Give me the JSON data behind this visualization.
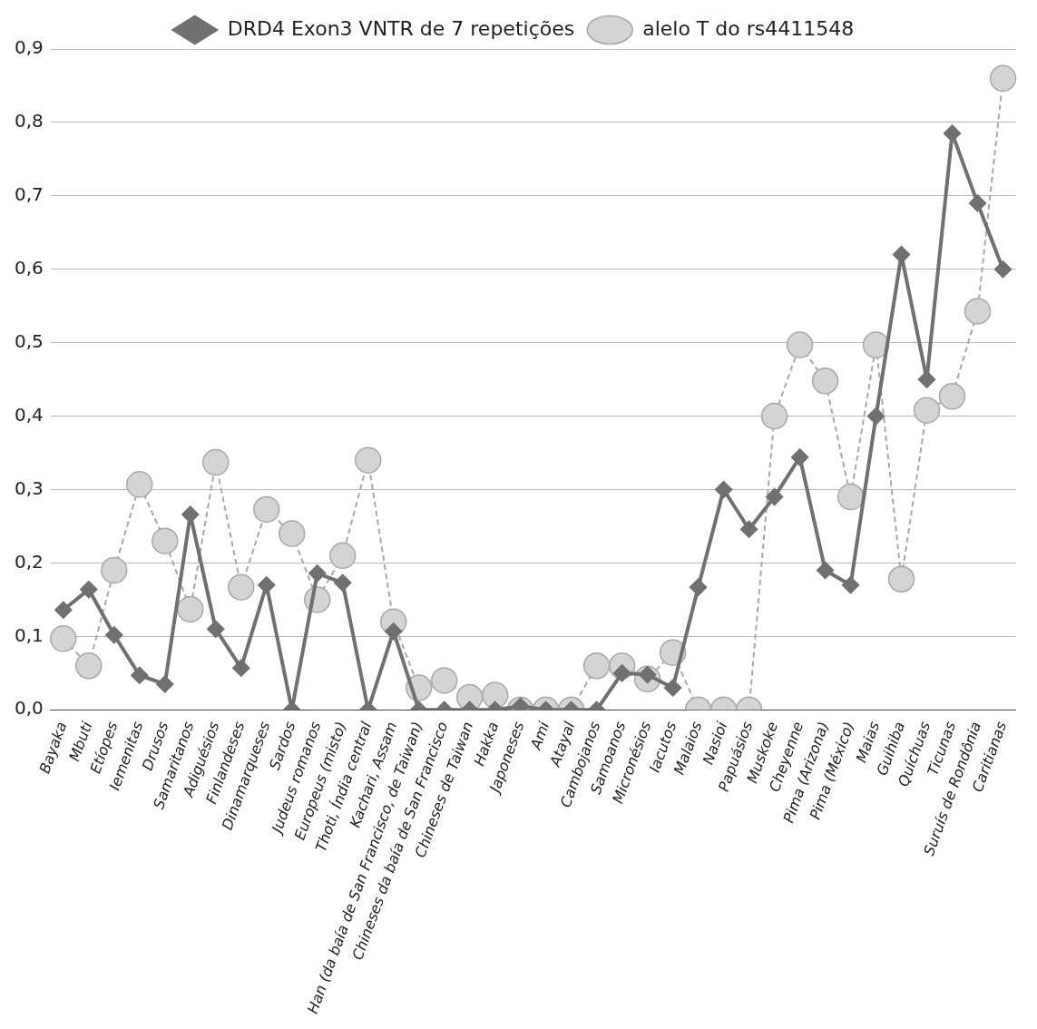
{
  "chart_data": {
    "type": "line",
    "categories": [
      "Bayaka",
      "Mbuti",
      "Etíopes",
      "Iemenitas",
      "Drusos",
      "Samaritanos",
      "Adiguésios",
      "Finlandeses",
      "Dinamarqueses",
      "Sardos",
      "Judeus romanos",
      "Europeus (misto)",
      "Thoti, Índia central",
      "Kachari, Assam",
      "Han (da baía de San Francisco, de Taiwan)",
      "Chineses da baía de San Francisco",
      "Chineses de Taiwan",
      "Hakka",
      "Japoneses",
      "Ami",
      "Atayal",
      "Cambojanos",
      "Samoanos",
      "Micronésios",
      "Iacutos",
      "Malaios",
      "Nasioi",
      "Papuásios",
      "Muskoke",
      "Cheyenne",
      "Pima (Arizona)",
      "Pima (México)",
      "Maias",
      "Guihiba",
      "Quíchuas",
      "Ticunas",
      "Suruís de Rondônia",
      "Caritianas"
    ],
    "series": [
      {
        "name": "DRD4 Exon3 VNTR de 7 repetições",
        "color": "#707070",
        "marker": "diamond",
        "line_style": "solid",
        "values": [
          0.136,
          0.164,
          0.102,
          0.047,
          0.035,
          0.266,
          0.11,
          0.057,
          0.17,
          0,
          0.186,
          0.173,
          0,
          0.107,
          0,
          0,
          0,
          0,
          0.005,
          0,
          0,
          0,
          0.05,
          0.048,
          0.03,
          0.167,
          0.3,
          0.246,
          0.29,
          0.344,
          0.19,
          0.17,
          0.4,
          0.62,
          0.45,
          0.785,
          0.69,
          0.6
        ]
      },
      {
        "name": "alelo T do rs4411548",
        "color": "#a8a8a8",
        "marker": "circle",
        "line_style": "dashed",
        "values": [
          0.097,
          0.06,
          0.19,
          0.307,
          0.23,
          0.137,
          0.337,
          0.167,
          0.273,
          0.24,
          0.15,
          0.21,
          0.34,
          0.12,
          0.03,
          0.04,
          0.017,
          0.02,
          0,
          0,
          0,
          0.06,
          0.06,
          0.042,
          0.078,
          0,
          0,
          0,
          0.4,
          0.497,
          0.448,
          0.29,
          0.497,
          0.178,
          0.408,
          0.427,
          0.543,
          0.86
        ]
      }
    ],
    "ylim": [
      0,
      0.9
    ],
    "yticks": [
      {
        "value": 0,
        "label": "0,0"
      },
      {
        "value": 0.1,
        "label": "0,1"
      },
      {
        "value": 0.2,
        "label": "0,2"
      },
      {
        "value": 0.3,
        "label": "0,3"
      },
      {
        "value": 0.4,
        "label": "0,4"
      },
      {
        "value": 0.5,
        "label": "0,5"
      },
      {
        "value": 0.6,
        "label": "0,6"
      },
      {
        "value": 0.7,
        "label": "0,7"
      },
      {
        "value": 0.8,
        "label": "0,8"
      },
      {
        "value": 0.9,
        "label": "0,9"
      }
    ],
    "grid": "y",
    "legend": "top"
  }
}
